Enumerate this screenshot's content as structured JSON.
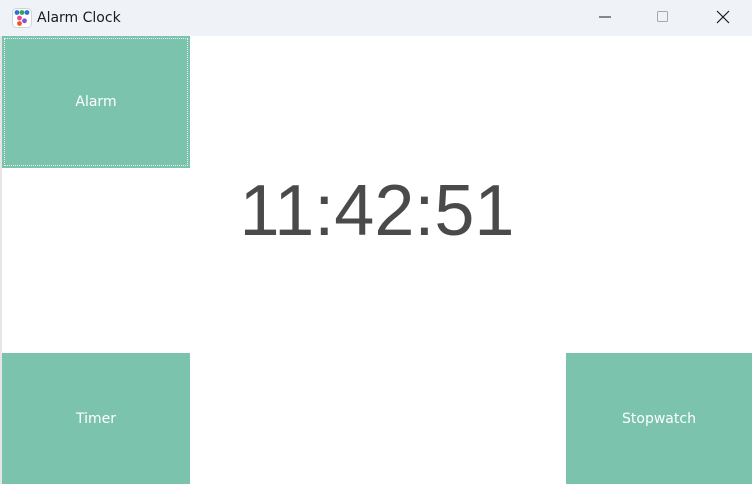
{
  "window": {
    "title": "Alarm Clock",
    "controls": {
      "minimize": "minimize-icon",
      "maximize": "maximize-icon",
      "close": "close-icon"
    }
  },
  "tiles": {
    "alarm": "Alarm",
    "timer": "Timer",
    "stopwatch": "Stopwatch"
  },
  "clock": {
    "time": "11:42:51"
  },
  "colors": {
    "tile": "#7bc3ad",
    "clock_text": "#4a4a4a",
    "titlebar": "#eff3f7"
  }
}
